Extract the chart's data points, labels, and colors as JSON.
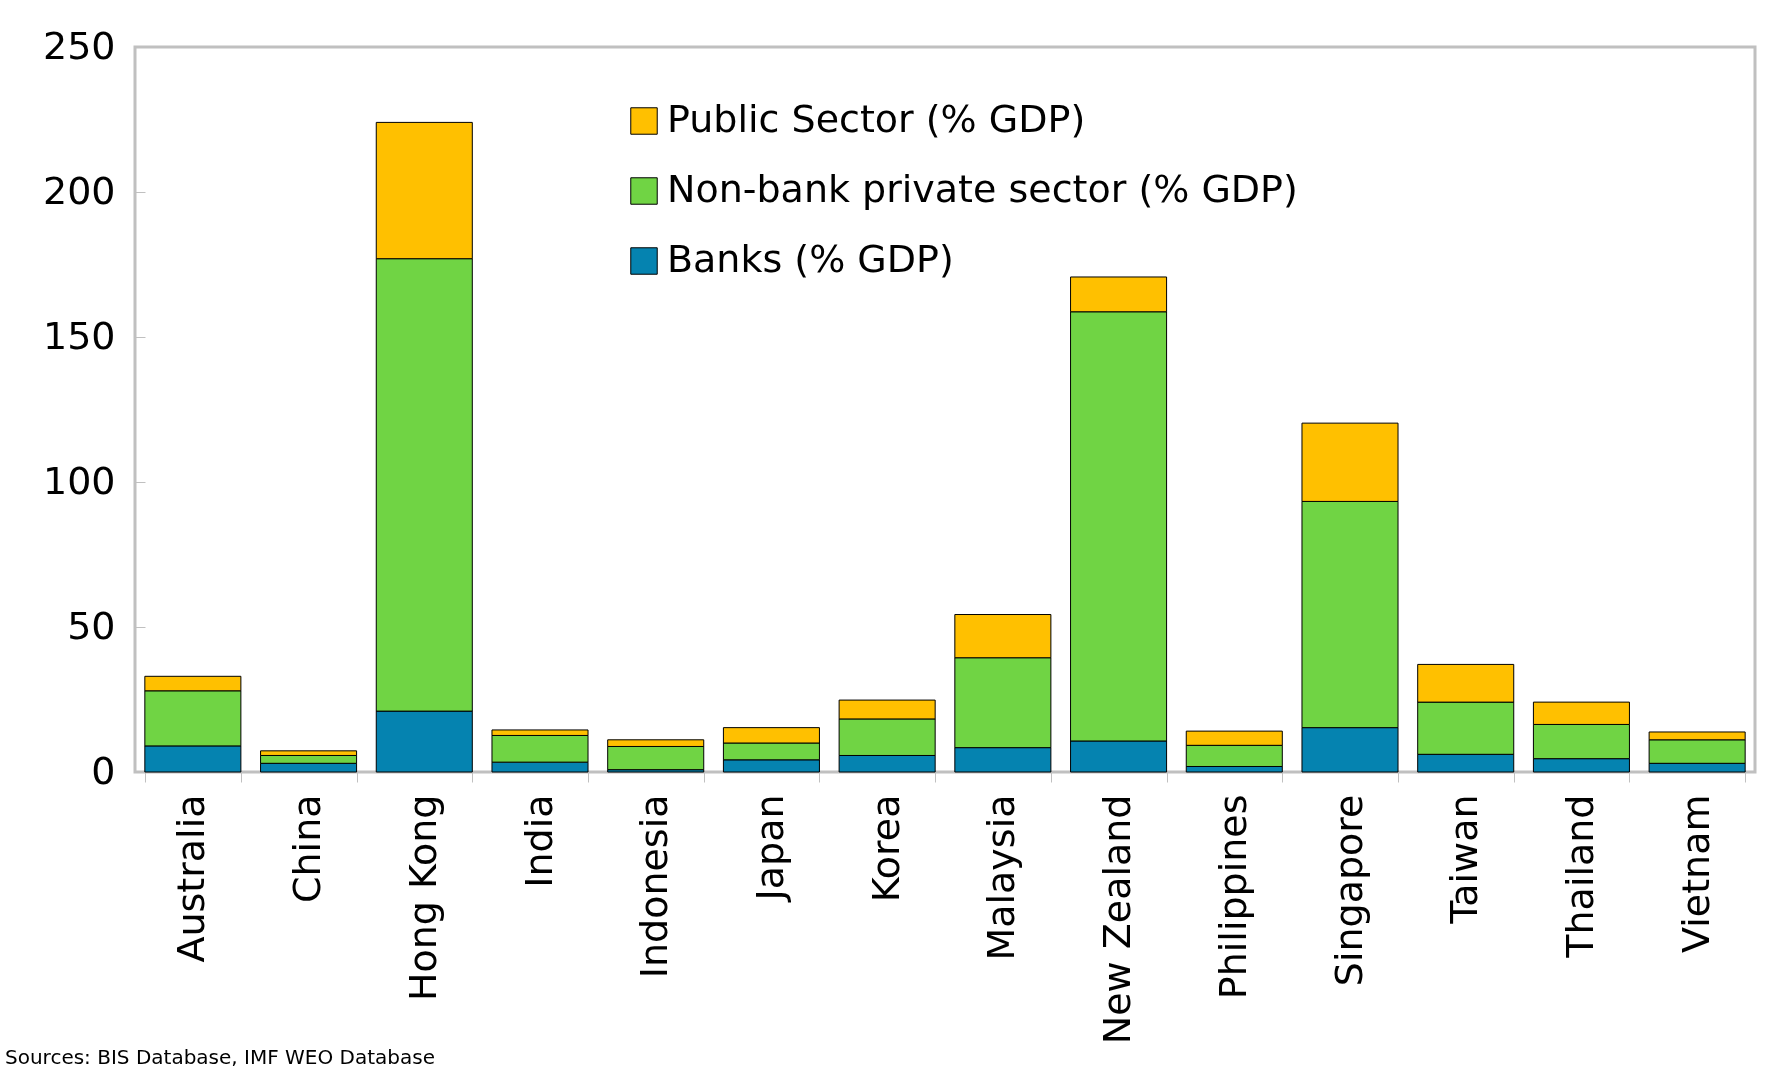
{
  "chart_data": {
    "type": "bar",
    "stacked": true,
    "categories": [
      "Australia",
      "China",
      "Hong Kong",
      "India",
      "Indonesia",
      "Japan",
      "Korea",
      "Malaysia",
      "New Zealand",
      "Philippines",
      "Singapore",
      "Taiwan",
      "Thailand",
      "Vietnam"
    ],
    "series": [
      {
        "name": "Banks (% GDP)",
        "color": "#0583b0",
        "values": [
          9,
          3,
          21,
          3.4,
          0.8,
          4.2,
          5.7,
          8.4,
          10.7,
          1.9,
          15.3,
          6.1,
          4.6,
          3
        ]
      },
      {
        "name": "Non-bank private sector (% GDP)",
        "color": "#70d444",
        "values": [
          19,
          2.7,
          156,
          9.2,
          8,
          5.8,
          12.6,
          31,
          148,
          7.3,
          78,
          18,
          11.8,
          8.1
        ]
      },
      {
        "name": "Public Sector (% GDP)",
        "color": "#ffc000",
        "values": [
          5,
          1.6,
          47,
          1.9,
          2.3,
          5.3,
          6.5,
          14.9,
          12,
          4.9,
          27,
          13,
          7.7,
          2.7
        ]
      }
    ],
    "ylim": [
      0,
      250
    ],
    "yticks": [
      0,
      50,
      100,
      150,
      200,
      250
    ],
    "grid": false,
    "legend": "top",
    "annotations": [
      "Sources: BIS Database, IMF WEO Database"
    ]
  }
}
